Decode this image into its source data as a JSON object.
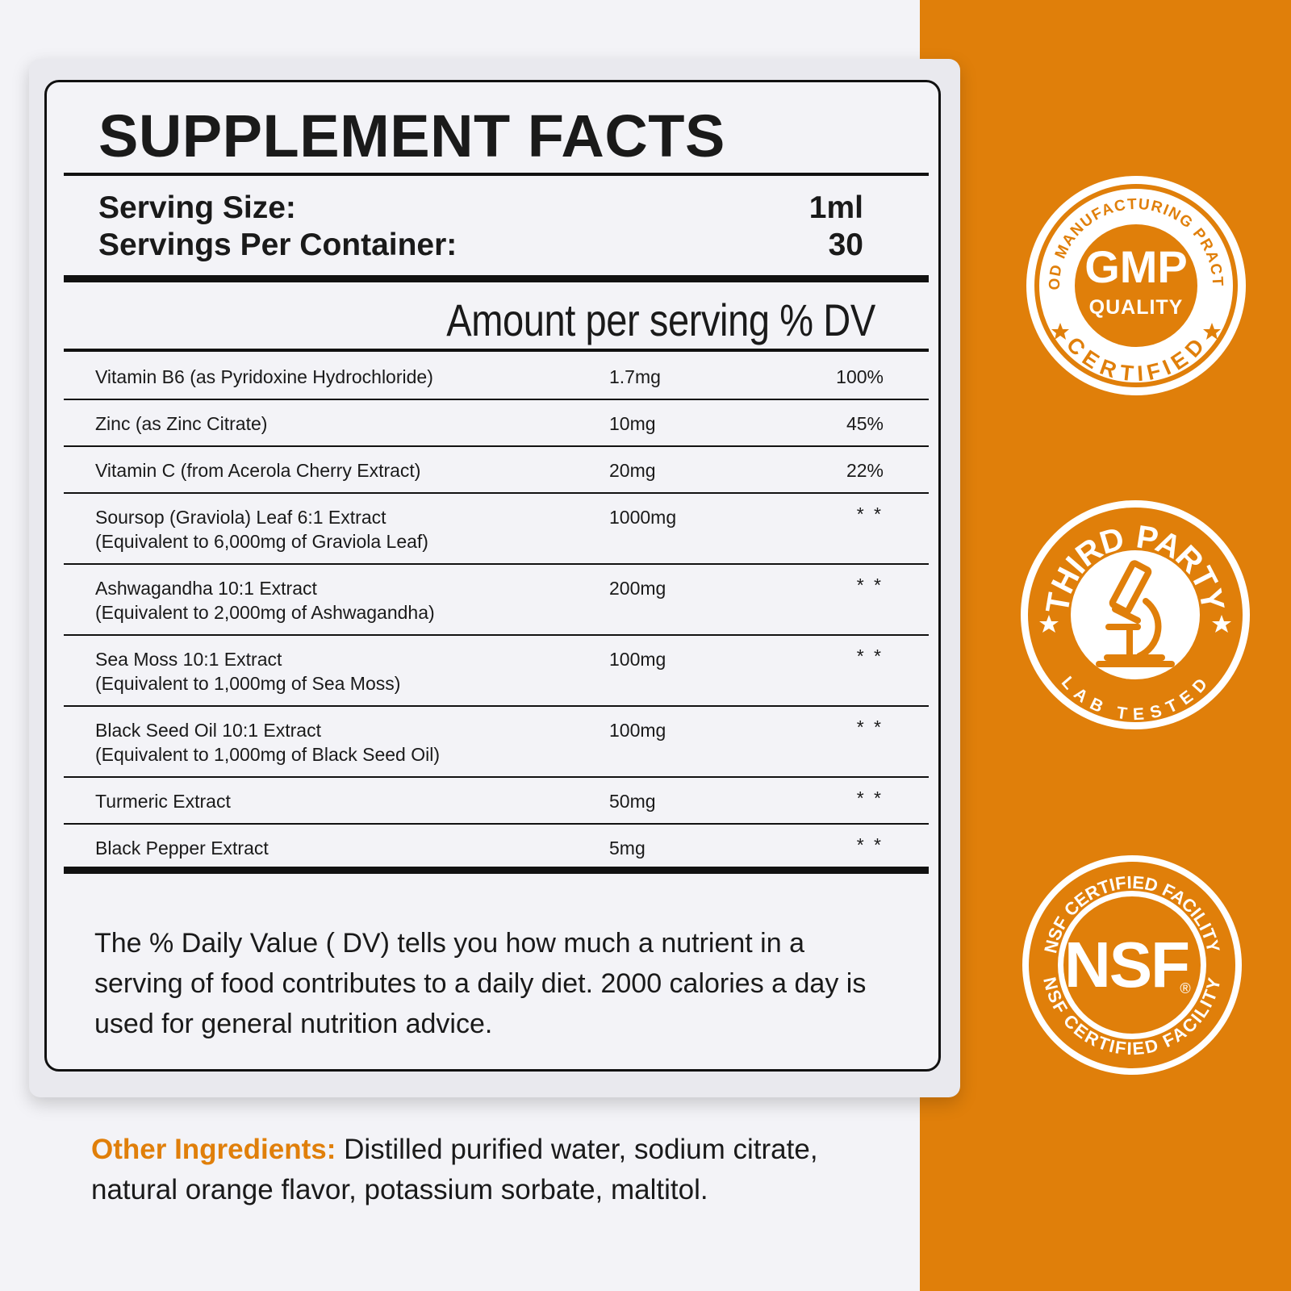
{
  "label": {
    "title": "SUPPLEMENT FACTS",
    "serving_size_label": "Serving Size:",
    "serving_size_value": "1ml",
    "servings_per_container_label": "Servings Per Container:",
    "servings_per_container_value": "30",
    "amount_header": "Amount per serving % DV",
    "ingredients": [
      {
        "name": "Vitamin B6 (as Pyridoxine Hydrochloride)",
        "sub": "",
        "amount": "1.7mg",
        "dv": "100%"
      },
      {
        "name": "Zinc (as Zinc Citrate)",
        "sub": "",
        "amount": "10mg",
        "dv": "45%"
      },
      {
        "name": "Vitamin C (from Acerola Cherry Extract)",
        "sub": "",
        "amount": "20mg",
        "dv": "22%"
      },
      {
        "name": "Soursop (Graviola) Leaf 6:1 Extract",
        "sub": "(Equivalent to 6,000mg of Graviola Leaf)",
        "amount": "1000mg",
        "dv": "* *"
      },
      {
        "name": "Ashwagandha 10:1 Extract",
        "sub": "(Equivalent to 2,000mg of Ashwagandha)",
        "amount": "200mg",
        "dv": "* *"
      },
      {
        "name": "Sea Moss 10:1 Extract",
        "sub": "(Equivalent to 1,000mg of Sea Moss)",
        "amount": "100mg",
        "dv": "* *"
      },
      {
        "name": "Black Seed Oil 10:1 Extract",
        "sub": "(Equivalent to 1,000mg of Black Seed Oil)",
        "amount": "100mg",
        "dv": "* *"
      },
      {
        "name": "Turmeric Extract",
        "sub": "",
        "amount": "50mg",
        "dv": "* *"
      },
      {
        "name": "Black Pepper Extract",
        "sub": "",
        "amount": "5mg",
        "dv": "* *"
      }
    ],
    "footnote": "The % Daily Value (  DV) tells you how much a nutrient in a serving of food contributes to a daily diet. 2000 calories a day is used for general nutrition advice."
  },
  "other_ingredients": {
    "label": "Other Ingredients:",
    "text": " Distilled purified water, sodium citrate, natural orange flavor, potassium sorbate, maltitol."
  },
  "badges": {
    "gmp": {
      "ring_top": "GOOD MANUFACTURING PRACTICE",
      "main": "GMP",
      "sub": "QUALITY",
      "ring_bottom": "CERTIFIED",
      "icon": "star-icon"
    },
    "third_party": {
      "ring_top": "THIRD PARTY",
      "ring_bottom": "LAB TESTED",
      "icon": "microscope-icon"
    },
    "nsf": {
      "ring_top": "NSF CERTIFIED FACILITY",
      "main": "NSF",
      "mark": "®",
      "ring_bottom": "NSF CERTIFIED FACILITY"
    }
  },
  "colors": {
    "accent": "#e07f0a",
    "background": "#f3f3f7",
    "ink": "#1a1a1a"
  }
}
